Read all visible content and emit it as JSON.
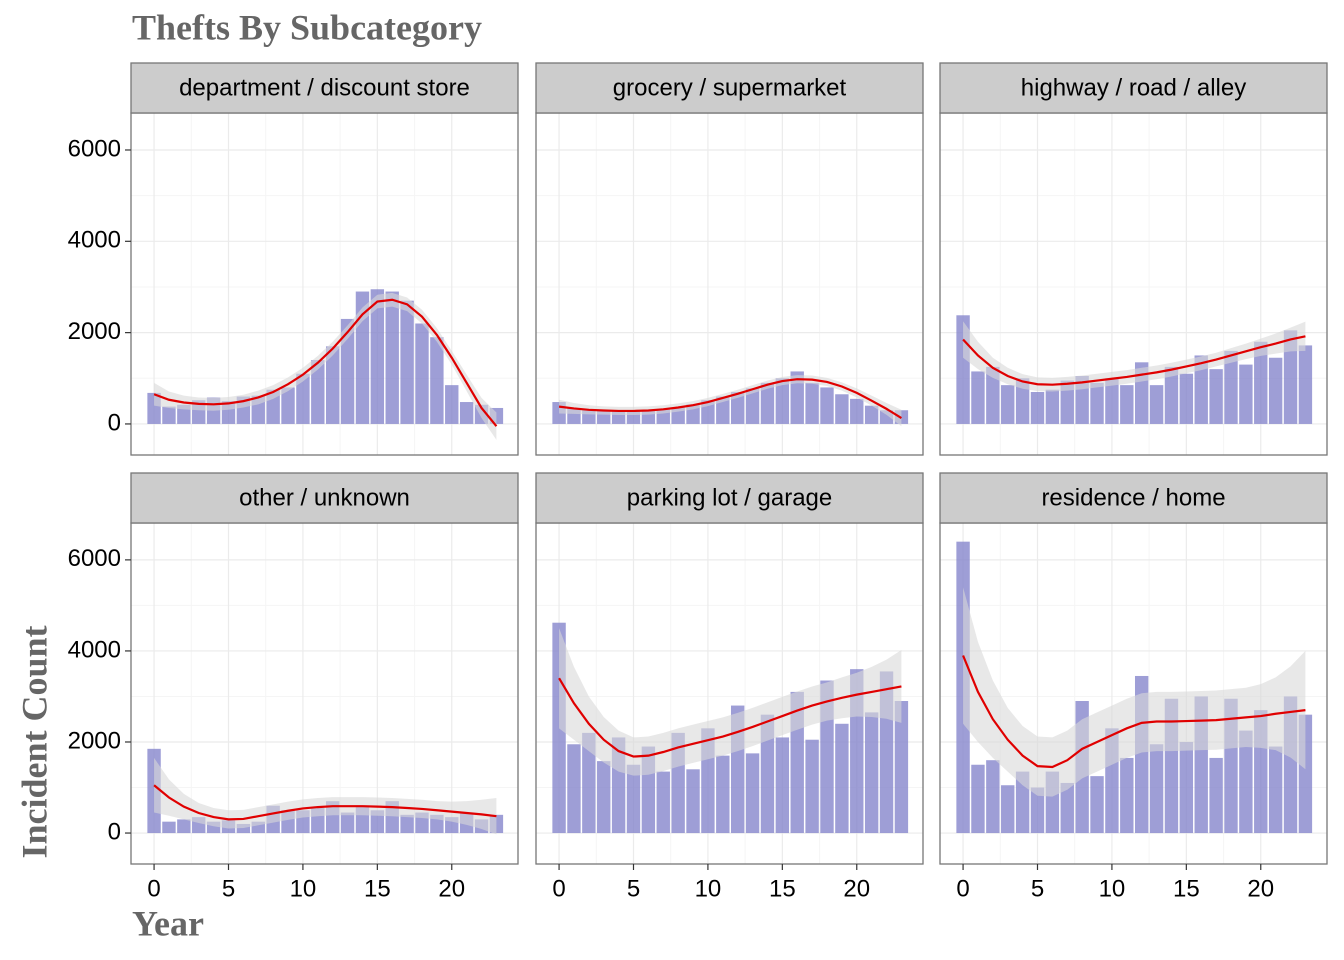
{
  "chart_data": {
    "type": "bar",
    "title": "Thefts By Subcategory",
    "x_label": "Year",
    "y_label": "Incident Count",
    "bar_color": "#8686cc",
    "line_color": "#e00000",
    "band_color": "#d9d9d9",
    "grid": true,
    "xlim": [
      -1.55,
      24.45
    ],
    "ylim": [
      -680,
      6810
    ],
    "xticks": [
      0,
      5,
      10,
      15,
      20
    ],
    "yticks": [
      0,
      2000,
      4000,
      6000
    ],
    "x": [
      0,
      1,
      2,
      3,
      4,
      5,
      6,
      7,
      8,
      9,
      10,
      11,
      12,
      13,
      14,
      15,
      16,
      17,
      18,
      19,
      20,
      21,
      22,
      23
    ],
    "facets": [
      {
        "name": "department / discount store",
        "values": [
          680,
          380,
          420,
          520,
          580,
          500,
          600,
          620,
          750,
          800,
          1100,
          1400,
          1700,
          2300,
          2900,
          2950,
          2900,
          2700,
          2200,
          1900,
          850,
          480,
          420,
          350
        ],
        "smooth": [
          650,
          530,
          470,
          440,
          430,
          450,
          500,
          580,
          700,
          870,
          1080,
          1340,
          1650,
          2010,
          2400,
          2680,
          2720,
          2620,
          2350,
          1950,
          1450,
          900,
          350,
          -50
        ],
        "smooth_se": [
          250,
          180,
          150,
          140,
          140,
          140,
          140,
          150,
          150,
          150,
          150,
          150,
          150,
          150,
          150,
          150,
          150,
          150,
          150,
          150,
          150,
          180,
          220,
          300
        ]
      },
      {
        "name": "grocery / supermarket",
        "values": [
          480,
          350,
          320,
          300,
          300,
          290,
          300,
          330,
          360,
          430,
          520,
          600,
          700,
          780,
          900,
          1000,
          1150,
          900,
          800,
          650,
          550,
          400,
          300,
          300
        ],
        "smooth": [
          380,
          340,
          310,
          295,
          285,
          285,
          295,
          320,
          360,
          410,
          480,
          570,
          660,
          760,
          860,
          940,
          980,
          970,
          920,
          820,
          680,
          510,
          330,
          130
        ],
        "smooth_se": [
          150,
          120,
          100,
          90,
          90,
          90,
          90,
          90,
          90,
          90,
          90,
          90,
          90,
          90,
          90,
          90,
          90,
          90,
          90,
          90,
          100,
          110,
          130,
          180
        ]
      },
      {
        "name": "highway / road / alley",
        "values": [
          2380,
          1150,
          1250,
          850,
          1000,
          700,
          750,
          950,
          1050,
          900,
          1000,
          850,
          1350,
          850,
          1250,
          1100,
          1500,
          1200,
          1600,
          1300,
          1800,
          1450,
          2050,
          1720
        ],
        "smooth": [
          1850,
          1500,
          1230,
          1050,
          930,
          870,
          860,
          880,
          910,
          950,
          990,
          1030,
          1080,
          1130,
          1190,
          1260,
          1330,
          1410,
          1500,
          1590,
          1680,
          1760,
          1850,
          1920
        ],
        "smooth_se": [
          400,
          300,
          220,
          180,
          160,
          150,
          150,
          150,
          150,
          150,
          150,
          150,
          150,
          150,
          150,
          150,
          150,
          150,
          160,
          170,
          190,
          220,
          260,
          320
        ]
      },
      {
        "name": "other / unknown",
        "values": [
          1850,
          250,
          300,
          350,
          250,
          280,
          200,
          250,
          600,
          500,
          500,
          550,
          700,
          450,
          600,
          500,
          700,
          400,
          450,
          400,
          350,
          450,
          300,
          400
        ],
        "smooth": [
          1050,
          780,
          580,
          440,
          350,
          300,
          310,
          370,
          430,
          490,
          540,
          570,
          590,
          590,
          590,
          580,
          570,
          550,
          530,
          500,
          470,
          440,
          410,
          370
        ],
        "smooth_se": [
          600,
          400,
          280,
          220,
          200,
          200,
          200,
          200,
          200,
          200,
          200,
          200,
          200,
          200,
          200,
          200,
          200,
          200,
          200,
          200,
          220,
          260,
          320,
          400
        ]
      },
      {
        "name": "parking lot / garage",
        "values": [
          4620,
          1950,
          2200,
          1580,
          2100,
          1500,
          1900,
          1350,
          2200,
          1400,
          2300,
          1700,
          2800,
          1750,
          2600,
          2100,
          3100,
          2050,
          3350,
          2400,
          3600,
          2650,
          3550,
          2900
        ],
        "smooth": [
          3400,
          2850,
          2400,
          2050,
          1800,
          1680,
          1700,
          1780,
          1880,
          1960,
          2040,
          2120,
          2220,
          2330,
          2450,
          2570,
          2690,
          2800,
          2890,
          2970,
          3040,
          3100,
          3160,
          3220
        ],
        "smooth_se": [
          1100,
          800,
          600,
          500,
          450,
          420,
          420,
          420,
          420,
          420,
          420,
          420,
          420,
          420,
          420,
          420,
          420,
          420,
          420,
          450,
          480,
          550,
          650,
          800
        ]
      },
      {
        "name": "residence / home",
        "values": [
          6400,
          1500,
          1600,
          1050,
          1350,
          1000,
          1350,
          1100,
          2900,
          1250,
          2300,
          1650,
          3450,
          1950,
          2950,
          2000,
          3000,
          1650,
          2950,
          2250,
          2700,
          1900,
          3000,
          2600
        ],
        "smooth": [
          3900,
          3100,
          2500,
          2050,
          1700,
          1470,
          1450,
          1600,
          1850,
          2000,
          2150,
          2300,
          2420,
          2450,
          2450,
          2460,
          2470,
          2480,
          2510,
          2540,
          2570,
          2620,
          2660,
          2700
        ],
        "smooth_se": [
          1500,
          1100,
          850,
          700,
          650,
          650,
          650,
          650,
          650,
          650,
          650,
          650,
          650,
          650,
          650,
          650,
          650,
          650,
          650,
          650,
          700,
          800,
          1000,
          1300
        ]
      }
    ]
  }
}
